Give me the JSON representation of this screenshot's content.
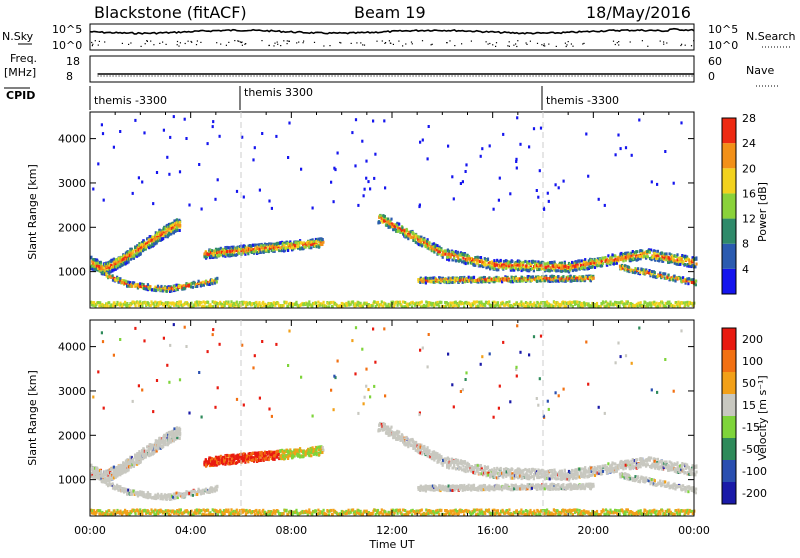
{
  "header": {
    "title": "Blackstone (fitACF)",
    "beam": "Beam 19",
    "date": "18/May/2016"
  },
  "top_panels": {
    "nsky_label": "N.Sky",
    "nsky_ticks": [
      "10^5",
      "10^0"
    ],
    "nsearch_label": "N.Search",
    "freq_label_1": "Freq.",
    "freq_label_2": "[MHz]",
    "freq_ticks": [
      "18",
      "8"
    ],
    "nave_label": "Nave",
    "nave_ticks": [
      "60",
      "0"
    ],
    "cpid_label": "CPID",
    "cpid_segments": [
      "themis -3300",
      "themis 3300",
      "themis -3300"
    ]
  },
  "chart_data": [
    {
      "type": "heatmap",
      "name": "power",
      "ylabel": "Slant Range [km]",
      "xlabel": "",
      "x_ticks": [
        "00:00",
        "04:00",
        "08:00",
        "12:00",
        "16:00",
        "20:00",
        "00:00"
      ],
      "y_ticks": [
        1000,
        2000,
        3000,
        4000
      ],
      "xlim_hours": [
        0,
        24
      ],
      "ylim_km": [
        180,
        4600
      ],
      "colorbar_label": "Power [dB]",
      "colorbar_ticks": [
        4,
        8,
        12,
        16,
        20,
        24,
        28
      ],
      "colorbar_colors": [
        "#1515ee",
        "#2b5bb0",
        "#2f8a6a",
        "#8ad23a",
        "#f2d21e",
        "#f29018",
        "#ee2a12"
      ],
      "features": [
        {
          "desc": "arc",
          "x": [
            0,
            0.5,
            1.2,
            2,
            2.8,
            3.4
          ],
          "y": [
            1200,
            1050,
            1250,
            1550,
            1850,
            2050
          ]
        },
        {
          "desc": "band",
          "x": [
            4.5,
            9.2
          ],
          "y": [
            1400,
            1650
          ]
        },
        {
          "desc": "descending band",
          "x": [
            11.5,
            14,
            16,
            19,
            22,
            24
          ],
          "y": [
            2200,
            1400,
            1150,
            1100,
            1400,
            1200
          ]
        },
        {
          "desc": "low band",
          "x": [
            13,
            20
          ],
          "y": [
            800,
            850
          ]
        }
      ]
    },
    {
      "type": "heatmap",
      "name": "velocity",
      "ylabel": "Slant Range [km]",
      "xlabel": "Time UT",
      "x_ticks": [
        "00:00",
        "04:00",
        "08:00",
        "12:00",
        "16:00",
        "20:00",
        "00:00"
      ],
      "y_ticks": [
        1000,
        2000,
        3000,
        4000
      ],
      "xlim_hours": [
        0,
        24
      ],
      "ylim_km": [
        180,
        4600
      ],
      "colorbar_label": "Velocity [m s⁻¹]",
      "colorbar_ticks": [
        200,
        100,
        50,
        15,
        -15,
        -50,
        -100,
        -200
      ],
      "colorbar_colors": [
        "#1a1aa8",
        "#2a4fb0",
        "#2e8a5a",
        "#7ed43a",
        "#c8c8c0",
        "#f2a018",
        "#f27012",
        "#e81a10"
      ]
    }
  ]
}
